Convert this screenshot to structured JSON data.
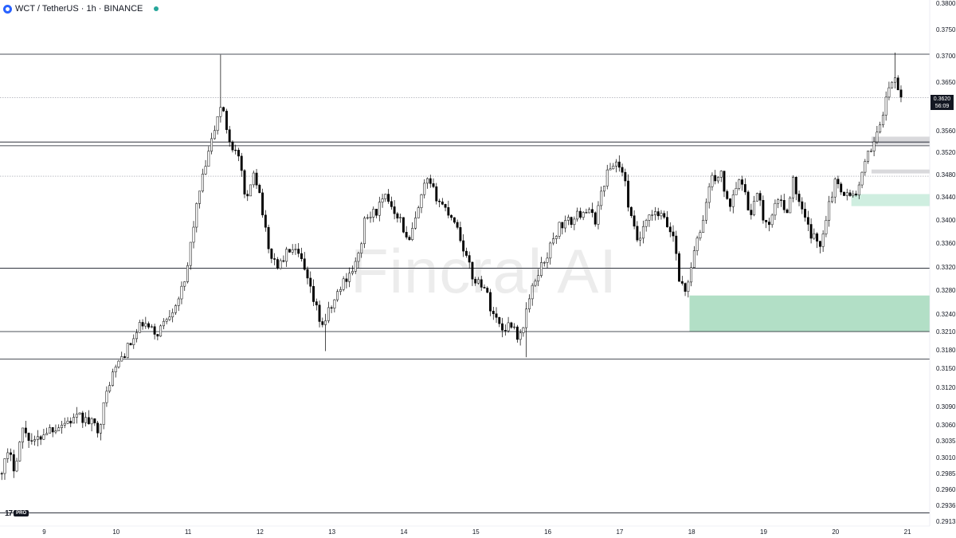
{
  "header": {
    "symbol": "WCT",
    "separator": "/",
    "quote": "TetherUS",
    "interval": "1h",
    "exchange": "BINANCE",
    "title": "WCT / TetherUS · 1h · BINANCE"
  },
  "watermark": "Fincral AI",
  "branding": {
    "mark": "17",
    "tier": "PRO"
  },
  "last_price": {
    "price": "0.3620",
    "countdown": "56:09"
  },
  "colors": {
    "up_body": "#ffffff",
    "down_body": "#000000",
    "wick": "#000000",
    "demand_zone": "#b2dfc6",
    "demand_zone_small": "#cfeee0",
    "supply_zone": "#d9d9dc",
    "level_line": "#131722",
    "dotted_line": "#9598a1",
    "price_tag_bg": "#131722",
    "accent": "#2962ff",
    "status_dot": "#26a69a"
  },
  "chart_data": {
    "type": "candlestick",
    "title": "WCT / TetherUS · 1h · BINANCE",
    "xlabel": "",
    "ylabel": "",
    "x_tick_labels": [
      "9",
      "10",
      "11",
      "12",
      "13",
      "14",
      "15",
      "16",
      "17",
      "18",
      "19",
      "20",
      "21"
    ],
    "x_range_days": [
      8.4,
      21.4
    ],
    "y_ticks": [
      {
        "label": "0.3800",
        "value": 0.38
      },
      {
        "label": "0.3750",
        "value": 0.375
      },
      {
        "label": "0.3700",
        "value": 0.37
      },
      {
        "label": "0.3650",
        "value": 0.365
      },
      {
        "label": "0.3560",
        "value": 0.356
      },
      {
        "label": "0.3520",
        "value": 0.352
      },
      {
        "label": "0.3480",
        "value": 0.348
      },
      {
        "label": "0.3440",
        "value": 0.344
      },
      {
        "label": "0.3400",
        "value": 0.34
      },
      {
        "label": "0.3360",
        "value": 0.336
      },
      {
        "label": "0.3320",
        "value": 0.332
      },
      {
        "label": "0.3280",
        "value": 0.328
      },
      {
        "label": "0.3240",
        "value": 0.324
      },
      {
        "label": "0.3210",
        "value": 0.321
      },
      {
        "label": "0.3180",
        "value": 0.318
      },
      {
        "label": "0.3150",
        "value": 0.315
      },
      {
        "label": "0.3120",
        "value": 0.312
      },
      {
        "label": "0.3090",
        "value": 0.309
      },
      {
        "label": "0.3060",
        "value": 0.306
      },
      {
        "label": "0.3035",
        "value": 0.3035
      },
      {
        "label": "0.3010",
        "value": 0.301
      },
      {
        "label": "0.2985",
        "value": 0.2985
      },
      {
        "label": "0.2960",
        "value": 0.296
      },
      {
        "label": "0.2936",
        "value": 0.2936
      },
      {
        "label": "0.2913",
        "value": 0.2913
      }
    ],
    "horizontal_levels": [
      {
        "price": 0.3703,
        "style": "solid"
      },
      {
        "price": 0.3539,
        "style": "solid"
      },
      {
        "price": 0.3532,
        "style": "solid"
      },
      {
        "price": 0.3318,
        "style": "solid"
      },
      {
        "price": 0.321,
        "style": "solid"
      },
      {
        "price": 0.3165,
        "style": "solid"
      },
      {
        "price": 0.2925,
        "style": "solid"
      },
      {
        "price": 0.3621,
        "style": "dotted"
      },
      {
        "price": 0.3477,
        "style": "dotted"
      }
    ],
    "zones": [
      {
        "kind": "demand",
        "x_start": 17.97,
        "x_end": 21.4,
        "y_low": 0.321,
        "y_high": 0.3271
      },
      {
        "kind": "demand_small",
        "x_start": 20.22,
        "x_end": 21.4,
        "y_low": 0.3424,
        "y_high": 0.3445
      },
      {
        "kind": "supply",
        "x_start": 20.5,
        "x_end": 21.4,
        "y_low": 0.3534,
        "y_high": 0.3549
      },
      {
        "kind": "supply",
        "x_start": 20.5,
        "x_end": 21.4,
        "y_low": 0.3482,
        "y_high": 0.3489
      }
    ],
    "anchors": [
      {
        "t": 8.41,
        "p": 0.2985
      },
      {
        "t": 8.55,
        "p": 0.3015
      },
      {
        "t": 8.62,
        "p": 0.2995
      },
      {
        "t": 8.75,
        "p": 0.3055
      },
      {
        "t": 8.9,
        "p": 0.303
      },
      {
        "t": 9.05,
        "p": 0.305
      },
      {
        "t": 9.35,
        "p": 0.3065
      },
      {
        "t": 9.55,
        "p": 0.3072
      },
      {
        "t": 9.8,
        "p": 0.3055
      },
      {
        "t": 9.95,
        "p": 0.313
      },
      {
        "t": 10.1,
        "p": 0.3165
      },
      {
        "t": 10.3,
        "p": 0.32
      },
      {
        "t": 10.4,
        "p": 0.3225
      },
      {
        "t": 10.6,
        "p": 0.3205
      },
      {
        "t": 10.85,
        "p": 0.3255
      },
      {
        "t": 11.0,
        "p": 0.329
      },
      {
        "t": 11.1,
        "p": 0.338
      },
      {
        "t": 11.2,
        "p": 0.345
      },
      {
        "t": 11.35,
        "p": 0.353
      },
      {
        "t": 11.5,
        "p": 0.361
      },
      {
        "t": 11.62,
        "p": 0.354
      },
      {
        "t": 11.75,
        "p": 0.351
      },
      {
        "t": 11.85,
        "p": 0.342
      },
      {
        "t": 11.95,
        "p": 0.349
      },
      {
        "t": 12.05,
        "p": 0.344
      },
      {
        "t": 12.15,
        "p": 0.335
      },
      {
        "t": 12.3,
        "p": 0.332
      },
      {
        "t": 12.45,
        "p": 0.335
      },
      {
        "t": 12.6,
        "p": 0.3335
      },
      {
        "t": 12.75,
        "p": 0.3275
      },
      {
        "t": 12.9,
        "p": 0.322
      },
      {
        "t": 13.05,
        "p": 0.3255
      },
      {
        "t": 13.2,
        "p": 0.3295
      },
      {
        "t": 13.4,
        "p": 0.333
      },
      {
        "t": 13.5,
        "p": 0.34
      },
      {
        "t": 13.65,
        "p": 0.3415
      },
      {
        "t": 13.8,
        "p": 0.344
      },
      {
        "t": 14.0,
        "p": 0.34
      },
      {
        "t": 14.1,
        "p": 0.3355
      },
      {
        "t": 14.25,
        "p": 0.342
      },
      {
        "t": 14.35,
        "p": 0.347
      },
      {
        "t": 14.55,
        "p": 0.343
      },
      {
        "t": 14.75,
        "p": 0.34
      },
      {
        "t": 14.85,
        "p": 0.336
      },
      {
        "t": 15.0,
        "p": 0.33
      },
      {
        "t": 15.15,
        "p": 0.329
      },
      {
        "t": 15.25,
        "p": 0.325
      },
      {
        "t": 15.4,
        "p": 0.3215
      },
      {
        "t": 15.55,
        "p": 0.3225
      },
      {
        "t": 15.65,
        "p": 0.3195
      },
      {
        "t": 15.75,
        "p": 0.325
      },
      {
        "t": 15.9,
        "p": 0.331
      },
      {
        "t": 16.05,
        "p": 0.3345
      },
      {
        "t": 16.2,
        "p": 0.339
      },
      {
        "t": 16.4,
        "p": 0.34
      },
      {
        "t": 16.55,
        "p": 0.342
      },
      {
        "t": 16.7,
        "p": 0.34
      },
      {
        "t": 16.85,
        "p": 0.348
      },
      {
        "t": 17.0,
        "p": 0.3505
      },
      {
        "t": 17.1,
        "p": 0.3475
      },
      {
        "t": 17.2,
        "p": 0.34
      },
      {
        "t": 17.3,
        "p": 0.336
      },
      {
        "t": 17.45,
        "p": 0.3405
      },
      {
        "t": 17.6,
        "p": 0.341
      },
      {
        "t": 17.7,
        "p": 0.339
      },
      {
        "t": 17.8,
        "p": 0.337
      },
      {
        "t": 17.87,
        "p": 0.33
      },
      {
        "t": 17.95,
        "p": 0.3275
      },
      {
        "t": 18.05,
        "p": 0.333
      },
      {
        "t": 18.2,
        "p": 0.34
      },
      {
        "t": 18.3,
        "p": 0.347
      },
      {
        "t": 18.45,
        "p": 0.348
      },
      {
        "t": 18.55,
        "p": 0.342
      },
      {
        "t": 18.7,
        "p": 0.348
      },
      {
        "t": 18.85,
        "p": 0.341
      },
      {
        "t": 18.95,
        "p": 0.3445
      },
      {
        "t": 19.1,
        "p": 0.338
      },
      {
        "t": 19.25,
        "p": 0.344
      },
      {
        "t": 19.35,
        "p": 0.341
      },
      {
        "t": 19.45,
        "p": 0.347
      },
      {
        "t": 19.55,
        "p": 0.342
      },
      {
        "t": 19.7,
        "p": 0.3375
      },
      {
        "t": 19.82,
        "p": 0.3355
      },
      {
        "t": 19.95,
        "p": 0.343
      },
      {
        "t": 20.05,
        "p": 0.347
      },
      {
        "t": 20.15,
        "p": 0.345
      },
      {
        "t": 20.25,
        "p": 0.344
      },
      {
        "t": 20.35,
        "p": 0.345
      },
      {
        "t": 20.48,
        "p": 0.351
      },
      {
        "t": 20.6,
        "p": 0.355
      },
      {
        "t": 20.72,
        "p": 0.36
      },
      {
        "t": 20.8,
        "p": 0.365
      },
      {
        "t": 20.86,
        "p": 0.3655
      },
      {
        "t": 20.92,
        "p": 0.363
      },
      {
        "t": 20.95,
        "p": 0.362
      }
    ],
    "notable_highs": [
      {
        "t": 11.45,
        "p": 0.3702
      },
      {
        "t": 20.81,
        "p": 0.3706
      }
    ],
    "notable_lows": [
      {
        "t": 15.72,
        "p": 0.3168
      },
      {
        "t": 12.9,
        "p": 0.3178
      },
      {
        "t": 8.45,
        "p": 0.2975
      }
    ],
    "grid": false,
    "legend": "none"
  }
}
